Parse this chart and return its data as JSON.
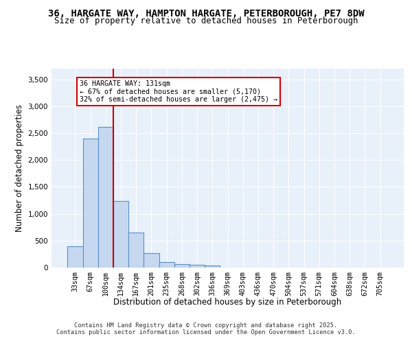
{
  "title_line1": "36, HARGATE WAY, HAMPTON HARGATE, PETERBOROUGH, PE7 8DW",
  "title_line2": "Size of property relative to detached houses in Peterborough",
  "xlabel": "Distribution of detached houses by size in Peterborough",
  "ylabel": "Number of detached properties",
  "categories": [
    "33sqm",
    "67sqm",
    "100sqm",
    "134sqm",
    "167sqm",
    "201sqm",
    "235sqm",
    "268sqm",
    "302sqm",
    "336sqm",
    "369sqm",
    "403sqm",
    "436sqm",
    "470sqm",
    "504sqm",
    "537sqm",
    "571sqm",
    "604sqm",
    "638sqm",
    "672sqm",
    "705sqm"
  ],
  "values": [
    390,
    2400,
    2620,
    1240,
    650,
    270,
    105,
    65,
    55,
    40,
    0,
    0,
    0,
    0,
    0,
    0,
    0,
    0,
    0,
    0,
    0
  ],
  "bar_color": "#c5d8f0",
  "bar_edge_color": "#5b8ec4",
  "vline_color": "#cc0000",
  "annotation_text": "36 HARGATE WAY: 131sqm\n← 67% of detached houses are smaller (5,170)\n32% of semi-detached houses are larger (2,475) →",
  "annotation_box_color": "white",
  "annotation_box_edge": "#cc0000",
  "ylim": [
    0,
    3700
  ],
  "yticks": [
    0,
    500,
    1000,
    1500,
    2000,
    2500,
    3000,
    3500
  ],
  "background_color": "#e8f0fa",
  "grid_color": "white",
  "footer_line1": "Contains HM Land Registry data © Crown copyright and database right 2025.",
  "footer_line2": "Contains public sector information licensed under the Open Government Licence v3.0."
}
